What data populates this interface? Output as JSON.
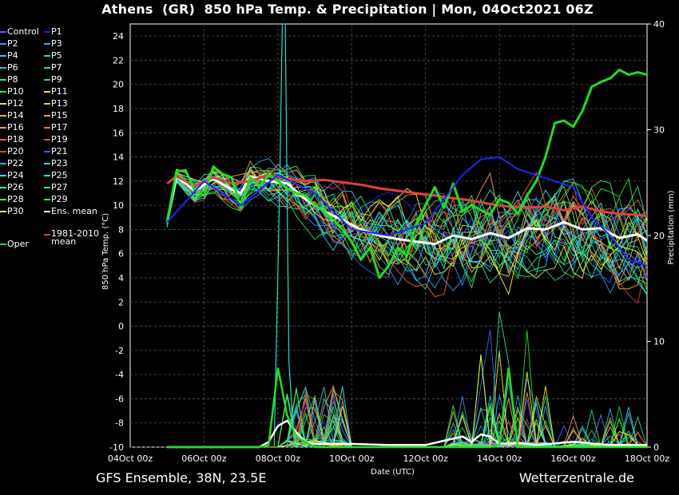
{
  "title": "Athens  (GR)  850 hPa Temp. & Precipitation | Mon, 04Oct2021 06Z",
  "footer": {
    "left": "GFS Ensemble, 38N, 23.5E",
    "right": "Wetterzentrale.de"
  },
  "colors": {
    "background": "#000000",
    "ens_mean": "#ffffff",
    "climate_mean": "#e04040",
    "oper": "#22dd22"
  },
  "legend": [
    {
      "label": "Control",
      "color": "#4466ff"
    },
    {
      "label": "P1",
      "color": "#2222ff"
    },
    {
      "label": "P2",
      "color": "#3399ff"
    },
    {
      "label": "P3",
      "color": "#33aaff"
    },
    {
      "label": "P4",
      "color": "#33ccee"
    },
    {
      "label": "P5",
      "color": "#22ddcc"
    },
    {
      "label": "P6",
      "color": "#22ccbb"
    },
    {
      "label": "P7",
      "color": "#22dd99"
    },
    {
      "label": "P8",
      "color": "#33dd77"
    },
    {
      "label": "P9",
      "color": "#22dd55"
    },
    {
      "label": "P10",
      "color": "#22ee22"
    },
    {
      "label": "P11",
      "color": "#eeee22"
    },
    {
      "label": "P12",
      "color": "#eedd44"
    },
    {
      "label": "P13",
      "color": "#eecc33"
    },
    {
      "label": "P14",
      "color": "#eebb33"
    },
    {
      "label": "P15",
      "color": "#ff9933"
    },
    {
      "label": "P16",
      "color": "#ff9955"
    },
    {
      "label": "P17",
      "color": "#ff7733"
    },
    {
      "label": "P18",
      "color": "#ee6633"
    },
    {
      "label": "P19",
      "color": "#dd5522"
    },
    {
      "label": "P20",
      "color": "#dd4433"
    },
    {
      "label": "P21",
      "color": "#3366ff"
    },
    {
      "label": "P22",
      "color": "#33aaff"
    },
    {
      "label": "P23",
      "color": "#44ccff"
    },
    {
      "label": "P24",
      "color": "#33ddee"
    },
    {
      "label": "P25",
      "color": "#22eebb"
    },
    {
      "label": "P26",
      "color": "#33ee99"
    },
    {
      "label": "P27",
      "color": "#22ee77"
    },
    {
      "label": "P28",
      "color": "#44ee55"
    },
    {
      "label": "P29",
      "color": "#33ff33"
    },
    {
      "label": "P30",
      "color": "#ffff33"
    },
    {
      "label": "Ens. mean",
      "color": "#ffffff"
    },
    {
      "label": "1981-2010 mean",
      "color": "#e04040"
    },
    {
      "label": "Oper",
      "color": "#22dd22"
    }
  ],
  "chart_data": {
    "type": "line",
    "title": "Athens  (GR)  850 hPa Temp. & Precipitation | Mon, 04Oct2021 06Z",
    "xlabel": "Date (UTC)",
    "ylabel": "850 hPa Temp. (°C)",
    "y2label": "Precipitation (mm)",
    "xticks": [
      "04Oct 00z",
      "06Oct 00z",
      "08Oct 00z",
      "10Oct 00z",
      "12Oct 00z",
      "14Oct 00z",
      "16Oct 00z",
      "18Oct 00z"
    ],
    "xlim_days": [
      0,
      14
    ],
    "ylim": [
      -10,
      25
    ],
    "yticks": [
      -10,
      -8,
      -6,
      -4,
      -2,
      0,
      2,
      4,
      6,
      8,
      10,
      12,
      14,
      16,
      18,
      20,
      22,
      24
    ],
    "y2lim": [
      0,
      40
    ],
    "y2ticks": [
      0,
      10,
      20,
      30,
      40
    ],
    "grid": true,
    "legend_placement": "left",
    "series": [
      {
        "name": "Ens. mean",
        "color": "#ffffff",
        "x": [
          1.0,
          1.25,
          1.75,
          2.25,
          2.75,
          3.0,
          3.25,
          3.75,
          4.25,
          4.75,
          5.25,
          5.75,
          6.25,
          6.75,
          7.25,
          7.75,
          8.25,
          8.75,
          9.25,
          9.75,
          10.25,
          10.75,
          11.25,
          11.75,
          12.25,
          12.75,
          13.25,
          13.75,
          14.0
        ],
        "y": [
          8.6,
          12.4,
          11.2,
          12.2,
          11.3,
          11.0,
          12.4,
          12.0,
          11.8,
          10.5,
          9.5,
          8.8,
          8.0,
          7.5,
          7.2,
          7.0,
          6.8,
          7.5,
          7.2,
          7.7,
          7.3,
          8.1,
          8.0,
          8.6,
          8.0,
          8.1,
          7.3,
          7.6,
          7.1
        ]
      },
      {
        "name": "1981-2010 mean",
        "color": "#e04040",
        "x": [
          1.0,
          1.25,
          1.75,
          2.25,
          2.75,
          3.25,
          3.75,
          4.25,
          4.75,
          5.25,
          5.75,
          6.25,
          6.75,
          7.25,
          7.75,
          8.25,
          8.75,
          9.25,
          9.75,
          10.25,
          10.75,
          11.25,
          11.75,
          12.25,
          12.75,
          13.25,
          13.75,
          14.0
        ],
        "y": [
          11.8,
          12.4,
          11.6,
          12.3,
          11.8,
          12.0,
          12.5,
          12.2,
          12.0,
          12.1,
          11.9,
          11.7,
          11.4,
          11.2,
          11.0,
          10.8,
          10.6,
          10.4,
          10.1,
          9.9,
          9.8,
          9.9,
          9.6,
          9.9,
          9.5,
          9.3,
          9.2,
          9.1
        ]
      },
      {
        "name": "Oper",
        "color": "#22dd22",
        "x": [
          1.0,
          1.25,
          1.5,
          1.75,
          2.0,
          2.25,
          2.5,
          2.75,
          3.0,
          3.25,
          3.5,
          3.75,
          4.0,
          4.25,
          4.5,
          4.75,
          5.0,
          5.25,
          5.5,
          5.75,
          6.0,
          6.25,
          6.5,
          6.75,
          7.0,
          7.25,
          7.5,
          7.75,
          8.0,
          8.25,
          8.5,
          8.75,
          9.0,
          9.25,
          9.5,
          9.75,
          10.0,
          10.25,
          10.5,
          10.75,
          11.0,
          11.25,
          11.5,
          11.75,
          12.0,
          12.25,
          12.5,
          12.75,
          13.0,
          13.25,
          13.5,
          13.75,
          14.0
        ],
        "y": [
          8.6,
          12.8,
          12.9,
          11.2,
          10.8,
          13.2,
          12.6,
          12.3,
          9.8,
          12.3,
          11.6,
          12.5,
          12.0,
          11.4,
          11.0,
          10.8,
          10.0,
          9.5,
          8.8,
          8.0,
          7.0,
          5.5,
          6.5,
          4.0,
          5.0,
          6.5,
          5.8,
          8.5,
          10.0,
          11.5,
          9.8,
          11.8,
          9.5,
          10.0,
          9.6,
          9.2,
          10.5,
          10.2,
          9.3,
          10.8,
          12.0,
          14.0,
          16.8,
          17.0,
          16.5,
          17.8,
          19.8,
          20.2,
          20.5,
          21.2,
          20.8,
          21.0,
          20.8
        ]
      },
      {
        "name": "P1",
        "color": "#2222ff",
        "x": [
          1.0,
          2.0,
          3.0,
          4.0,
          5.0,
          6.0,
          7.0,
          8.0,
          8.5,
          9.0,
          9.5,
          10.0,
          10.5,
          11.0,
          11.5,
          12.0,
          12.5,
          13.0,
          13.5,
          14.0
        ],
        "y": [
          8.6,
          12.0,
          10.0,
          12.5,
          11.0,
          8.0,
          7.5,
          8.5,
          10.5,
          12.5,
          13.8,
          14.0,
          13.0,
          12.5,
          12.0,
          11.5,
          9.0,
          7.5,
          5.5,
          5.0
        ]
      }
    ],
    "precipitation": {
      "y2_unit": "mm",
      "note_peaks": [
        {
          "x": 4.1,
          "value": 40
        }
      ]
    }
  }
}
